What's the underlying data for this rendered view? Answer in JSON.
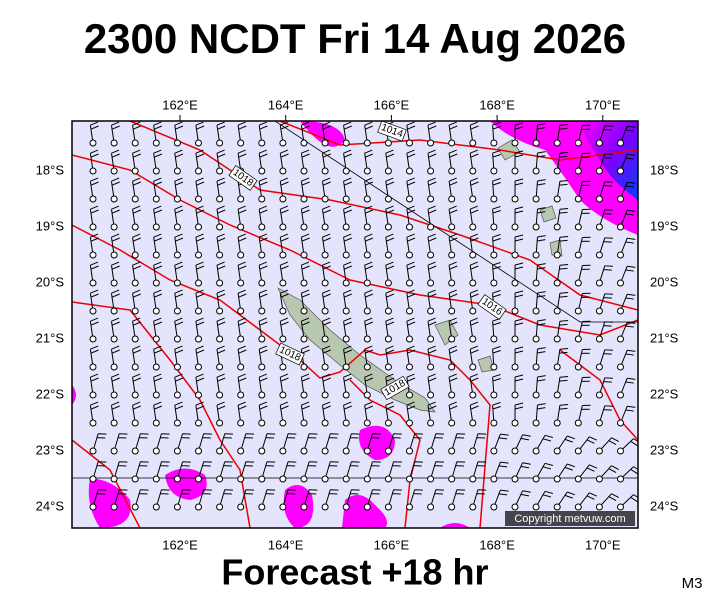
{
  "title": "2300 NCDT Fri 14 Aug 2026",
  "map": {
    "lon_labels": [
      "162°E",
      "164°E",
      "166°E",
      "168°E",
      "170°E"
    ],
    "lat_labels": [
      "18°S",
      "19°S",
      "20°S",
      "21°S",
      "22°S",
      "23°S",
      "24°S"
    ],
    "isobar_labels": [
      "1014",
      "1018",
      "1016",
      "1018",
      "1018"
    ],
    "copyright": "Copyright metvuw.com"
  },
  "footer": "Forecast +18 hr",
  "corner": "M3"
}
